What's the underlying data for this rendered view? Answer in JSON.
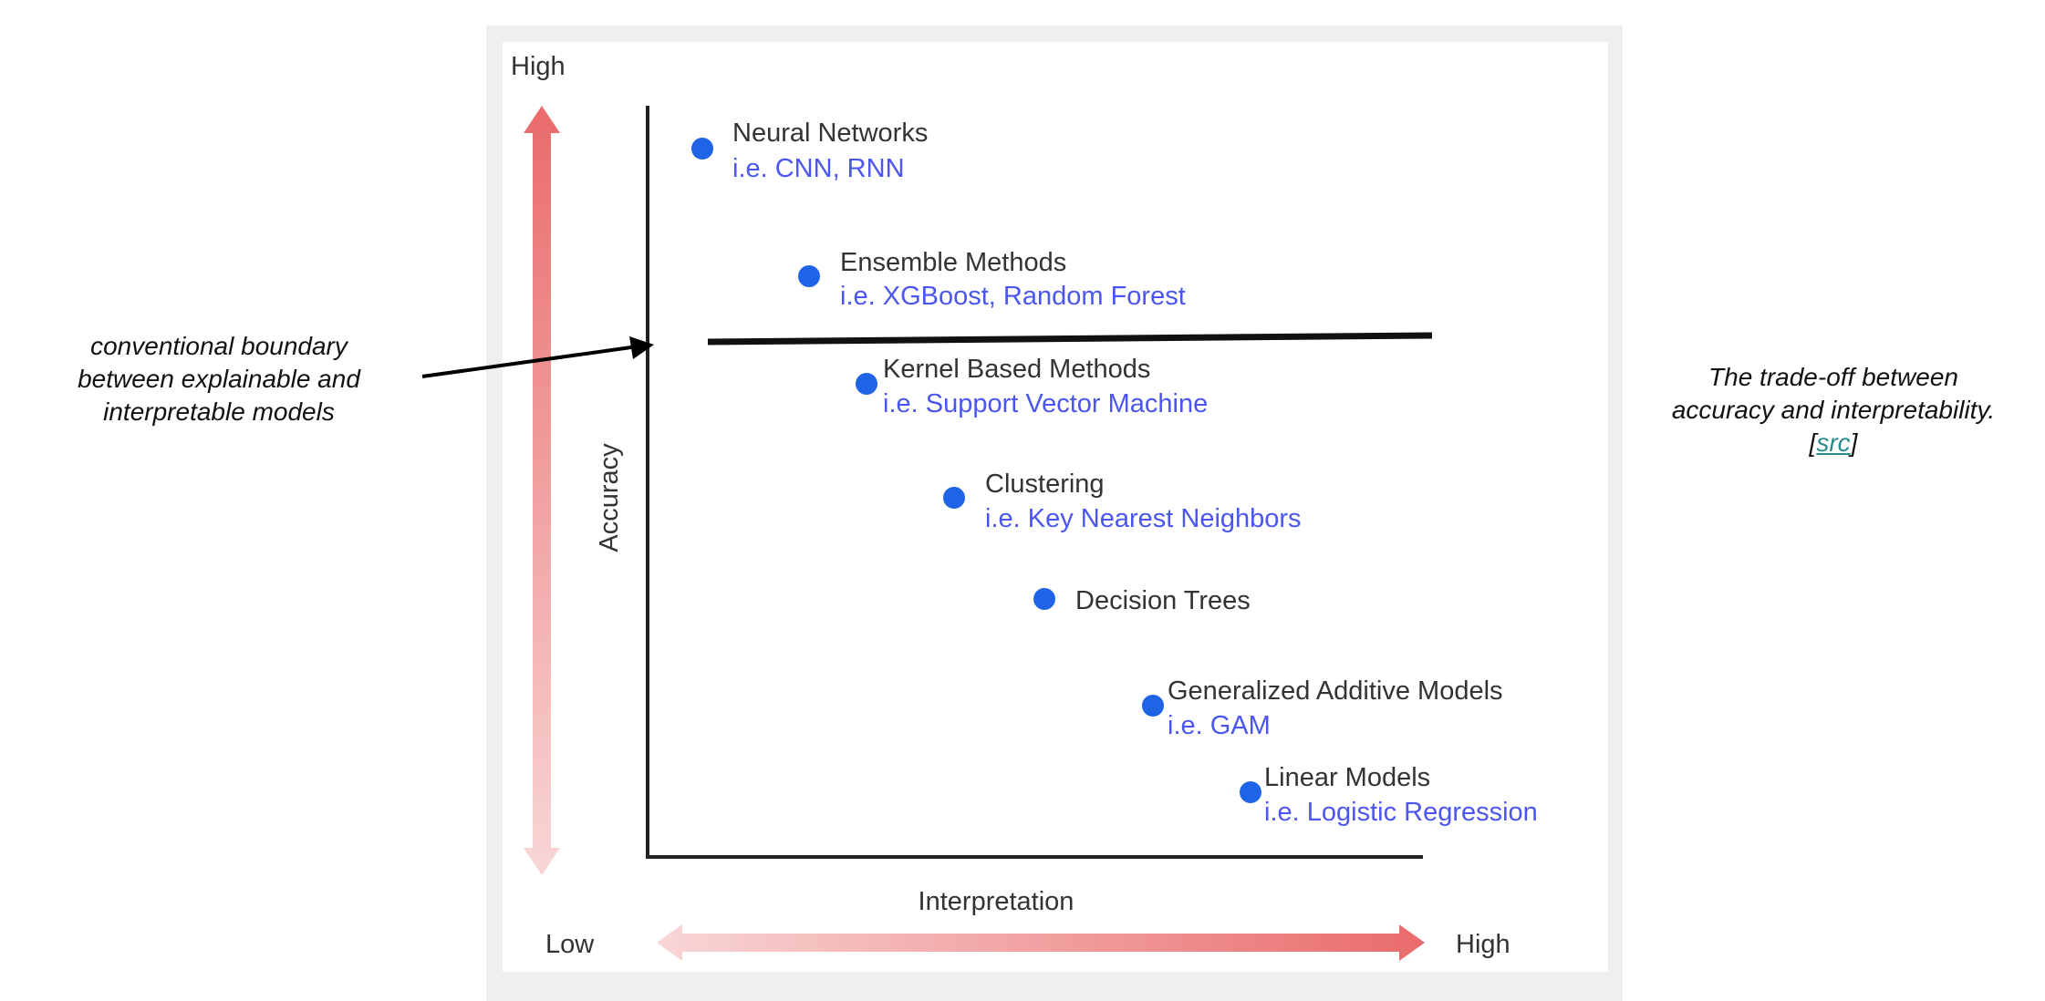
{
  "diagram": {
    "left_scale": {
      "top_label": "High"
    },
    "y_axis_label": "Accuracy",
    "x_axis_label": "Interpretation",
    "bottom_scale": {
      "left_label": "Low",
      "right_label": "High"
    },
    "models": [
      {
        "name": "Neural Networks",
        "example": "i.e. CNN, RNN"
      },
      {
        "name": "Ensemble Methods",
        "example": "i.e. XGBoost, Random Forest"
      },
      {
        "name": "Kernel Based Methods",
        "example": "i.e. Support Vector Machine"
      },
      {
        "name": "Clustering",
        "example": "i.e. Key Nearest Neighbors"
      },
      {
        "name": "Decision Trees",
        "example": ""
      },
      {
        "name": "Generalized Additive Models",
        "example": "i.e. GAM"
      },
      {
        "name": "Linear Models",
        "example": "i.e. Logistic Regression"
      }
    ],
    "boundary_annotation": {
      "lines": [
        "conventional boundary",
        "between explainable and",
        "interpretable models"
      ]
    },
    "caption": {
      "line1": "The trade-off between",
      "line2": "accuracy and interpretability.",
      "bracket_open": "[",
      "link_text": "src",
      "bracket_close": "]"
    }
  },
  "colors": {
    "point": "#1f63e6",
    "example_text": "#4b56f0",
    "arrow_strong": "#ea6b6b",
    "arrow_faint": "#f8d6d6",
    "link": "#2a8d8d"
  }
}
